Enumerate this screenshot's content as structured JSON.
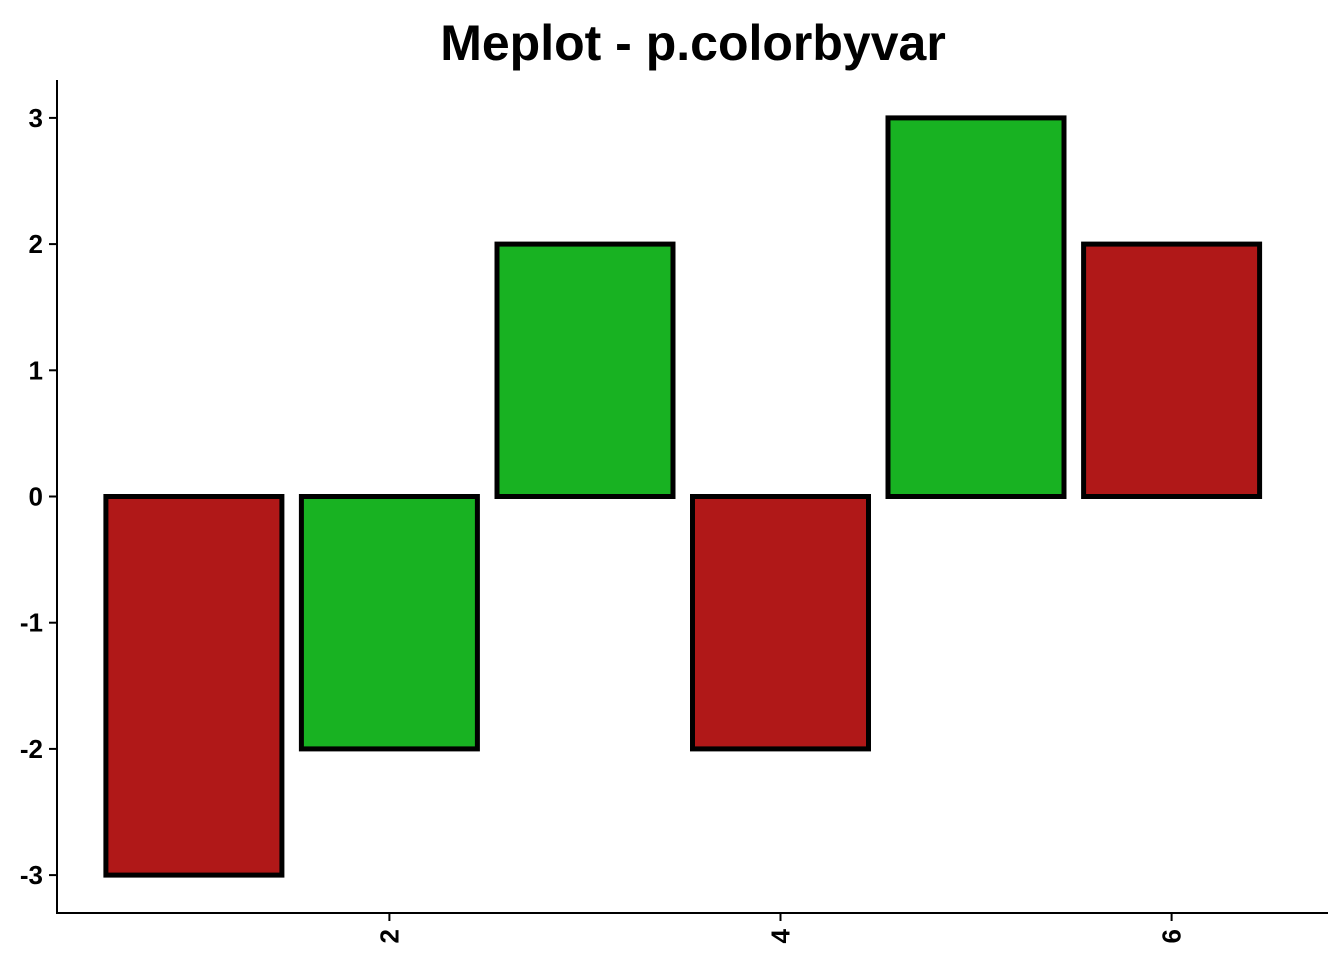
{
  "chart_data": {
    "type": "bar",
    "title": "Meplot - p.colorbyvar",
    "xlabel": "",
    "ylabel": "",
    "x": [
      1,
      2,
      3,
      4,
      5,
      6
    ],
    "values": [
      -3,
      -2,
      2,
      -2,
      3,
      2
    ],
    "bar_colors": [
      "#B01818",
      "#18B222",
      "#18B222",
      "#B01818",
      "#18B222",
      "#B01818"
    ],
    "x_ticks": [
      2,
      4,
      6
    ],
    "y_ticks": [
      -3,
      -2,
      -1,
      0,
      1,
      2,
      3
    ],
    "xlim": [
      0.3,
      6.8
    ],
    "ylim": [
      -3.3,
      3.3
    ],
    "grid": false,
    "legend": "none"
  }
}
